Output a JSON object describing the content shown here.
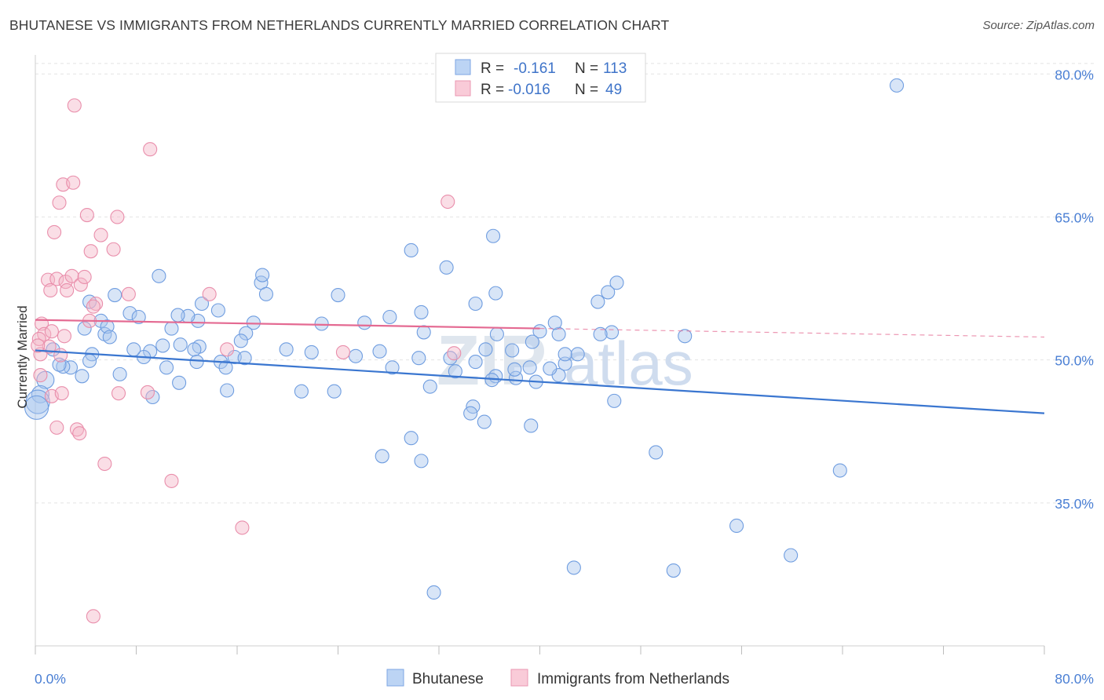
{
  "title": "BHUTANESE VS IMMIGRANTS FROM NETHERLANDS CURRENTLY MARRIED CORRELATION CHART",
  "source": "Source: ZipAtlas.com",
  "watermark": {
    "part1": "ZIP",
    "part2": "atlas"
  },
  "legend": {
    "r_label": "R =",
    "n_label": "N =",
    "rows": [
      {
        "series": "Bhutanese",
        "r": "-0.161",
        "n": "113",
        "color": "#a8c6ee"
      },
      {
        "series": "Immigrants from Netherlands",
        "r": "-0.016",
        "n": "49",
        "color": "#f4b6c8"
      }
    ]
  },
  "bottom_legend": [
    "Bhutanese",
    "Immigrants from Netherlands"
  ],
  "chart_data": {
    "type": "scatter",
    "title": "BHUTANESE VS IMMIGRANTS FROM NETHERLANDS CURRENTLY MARRIED CORRELATION CHART",
    "xlabel": "",
    "ylabel": "Currently Married",
    "xlim": [
      0,
      80
    ],
    "ylim": [
      20,
      82
    ],
    "x_tick_labels": [
      "0.0%",
      "80.0%"
    ],
    "y_ticks": [
      35,
      50,
      65,
      80
    ],
    "y_tick_labels": [
      "35.0%",
      "50.0%",
      "65.0%",
      "80.0%"
    ],
    "grid": true,
    "legend_position": "top-center",
    "series": [
      {
        "name": "Bhutanese",
        "color": "#a8c6ee",
        "stroke": "#6f9de0",
        "trend": {
          "x0": 0,
          "y0": 51.0,
          "x1": 80,
          "y1": 44.4,
          "color": "#3a76d0"
        },
        "points": [
          [
            68.3,
            78.8
          ],
          [
            36.5,
            57.0
          ],
          [
            34.9,
            55.9
          ],
          [
            36.6,
            52.7
          ],
          [
            37.8,
            51.0
          ],
          [
            30.4,
            50.2
          ],
          [
            30.8,
            52.9
          ],
          [
            24.0,
            56.8
          ],
          [
            30.6,
            55.0
          ],
          [
            28.1,
            54.5
          ],
          [
            35.7,
            51.1
          ],
          [
            34.9,
            49.8
          ],
          [
            34.7,
            45.1
          ],
          [
            34.5,
            44.4
          ],
          [
            35.6,
            43.5
          ],
          [
            38.1,
            48.1
          ],
          [
            36.5,
            48.3
          ],
          [
            38.0,
            49.0
          ],
          [
            36.2,
            47.9
          ],
          [
            39.2,
            49.2
          ],
          [
            41.5,
            48.4
          ],
          [
            41.5,
            52.7
          ],
          [
            40.0,
            53.0
          ],
          [
            41.2,
            53.9
          ],
          [
            40.8,
            49.1
          ],
          [
            39.4,
            51.9
          ],
          [
            42.0,
            49.6
          ],
          [
            43.0,
            50.6
          ],
          [
            45.9,
            45.7
          ],
          [
            45.4,
            57.1
          ],
          [
            51.5,
            52.5
          ],
          [
            45.7,
            52.9
          ],
          [
            44.8,
            52.7
          ],
          [
            46.1,
            58.1
          ],
          [
            50.6,
            27.9
          ],
          [
            49.2,
            40.3
          ],
          [
            55.6,
            32.6
          ],
          [
            59.9,
            29.5
          ],
          [
            63.8,
            38.4
          ],
          [
            31.6,
            25.6
          ],
          [
            42.7,
            28.2
          ],
          [
            39.3,
            43.1
          ],
          [
            39.7,
            47.7
          ],
          [
            42.0,
            50.6
          ],
          [
            44.6,
            56.1
          ],
          [
            32.6,
            59.7
          ],
          [
            36.3,
            63.0
          ],
          [
            29.8,
            61.5
          ],
          [
            30.6,
            39.4
          ],
          [
            31.3,
            47.2
          ],
          [
            33.3,
            48.8
          ],
          [
            32.9,
            50.2
          ],
          [
            27.5,
            39.9
          ],
          [
            29.8,
            41.8
          ],
          [
            26.1,
            53.9
          ],
          [
            27.3,
            50.9
          ],
          [
            28.3,
            49.2
          ],
          [
            22.7,
            53.8
          ],
          [
            25.4,
            50.4
          ],
          [
            23.7,
            46.7
          ],
          [
            21.1,
            46.7
          ],
          [
            21.9,
            50.8
          ],
          [
            17.9,
            58.1
          ],
          [
            18.3,
            56.9
          ],
          [
            17.3,
            53.9
          ],
          [
            16.7,
            52.8
          ],
          [
            16.3,
            52.0
          ],
          [
            15.8,
            50.3
          ],
          [
            14.7,
            49.8
          ],
          [
            13.0,
            51.4
          ],
          [
            12.6,
            51.1
          ],
          [
            12.8,
            49.8
          ],
          [
            11.5,
            51.6
          ],
          [
            10.4,
            49.2
          ],
          [
            11.4,
            47.6
          ],
          [
            12.9,
            54.1
          ],
          [
            14.5,
            55.2
          ],
          [
            13.2,
            55.9
          ],
          [
            12.1,
            54.6
          ],
          [
            10.8,
            53.3
          ],
          [
            10.1,
            51.5
          ],
          [
            9.1,
            50.9
          ],
          [
            8.6,
            50.3
          ],
          [
            7.8,
            51.1
          ],
          [
            7.5,
            54.9
          ],
          [
            6.3,
            56.8
          ],
          [
            5.2,
            54.1
          ],
          [
            5.5,
            52.7
          ],
          [
            4.5,
            50.6
          ],
          [
            3.9,
            53.3
          ],
          [
            4.3,
            56.1
          ],
          [
            3.7,
            48.3
          ],
          [
            2.8,
            49.2
          ],
          [
            2.2,
            49.3
          ],
          [
            1.9,
            49.5
          ],
          [
            1.4,
            51.1
          ],
          [
            0.8,
            47.9
          ],
          [
            0.4,
            46.4
          ],
          [
            0.2,
            45.6
          ],
          [
            0.1,
            45.0
          ],
          [
            4.3,
            49.9
          ],
          [
            5.7,
            53.5
          ],
          [
            5.9,
            52.4
          ],
          [
            6.7,
            48.5
          ],
          [
            8.2,
            54.5
          ],
          [
            9.3,
            46.1
          ],
          [
            9.8,
            58.8
          ],
          [
            11.3,
            54.7
          ],
          [
            15.1,
            49.2
          ],
          [
            15.2,
            46.8
          ],
          [
            16.6,
            50.2
          ],
          [
            18.0,
            58.9
          ],
          [
            19.9,
            51.1
          ]
        ]
      },
      {
        "name": "Immigrants from Netherlands",
        "color": "#f4b6c8",
        "stroke": "#e98eab",
        "trend": {
          "x0": 0,
          "y0": 54.2,
          "x1": 40,
          "y1": 53.3,
          "x2": 80,
          "y2": 52.4,
          "color": "#e46a92"
        },
        "points": [
          [
            3.1,
            76.7
          ],
          [
            9.1,
            72.1
          ],
          [
            2.2,
            68.4
          ],
          [
            3.0,
            68.6
          ],
          [
            1.9,
            66.5
          ],
          [
            4.1,
            65.2
          ],
          [
            6.5,
            65.0
          ],
          [
            1.5,
            63.4
          ],
          [
            5.2,
            63.1
          ],
          [
            4.4,
            61.4
          ],
          [
            6.2,
            61.6
          ],
          [
            1.0,
            58.4
          ],
          [
            1.7,
            58.5
          ],
          [
            2.4,
            58.2
          ],
          [
            2.9,
            58.8
          ],
          [
            3.6,
            57.9
          ],
          [
            3.9,
            58.7
          ],
          [
            1.2,
            57.3
          ],
          [
            2.5,
            57.3
          ],
          [
            7.4,
            56.9
          ],
          [
            13.8,
            56.9
          ],
          [
            4.8,
            55.9
          ],
          [
            4.6,
            55.6
          ],
          [
            4.3,
            54.1
          ],
          [
            0.5,
            53.8
          ],
          [
            0.7,
            52.7
          ],
          [
            1.3,
            53.0
          ],
          [
            2.3,
            52.5
          ],
          [
            1.1,
            51.4
          ],
          [
            2.0,
            50.5
          ],
          [
            15.2,
            51.1
          ],
          [
            24.4,
            50.8
          ],
          [
            33.2,
            50.7
          ],
          [
            0.4,
            50.6
          ],
          [
            0.4,
            48.4
          ],
          [
            1.3,
            46.2
          ],
          [
            2.1,
            46.5
          ],
          [
            6.6,
            46.5
          ],
          [
            8.9,
            46.6
          ],
          [
            1.7,
            42.9
          ],
          [
            3.3,
            42.7
          ],
          [
            3.5,
            42.3
          ],
          [
            5.5,
            39.1
          ],
          [
            10.8,
            37.3
          ],
          [
            16.4,
            32.4
          ],
          [
            4.6,
            23.1
          ],
          [
            32.7,
            66.6
          ],
          [
            0.3,
            52.2
          ],
          [
            0.2,
            51.5
          ]
        ]
      }
    ]
  }
}
